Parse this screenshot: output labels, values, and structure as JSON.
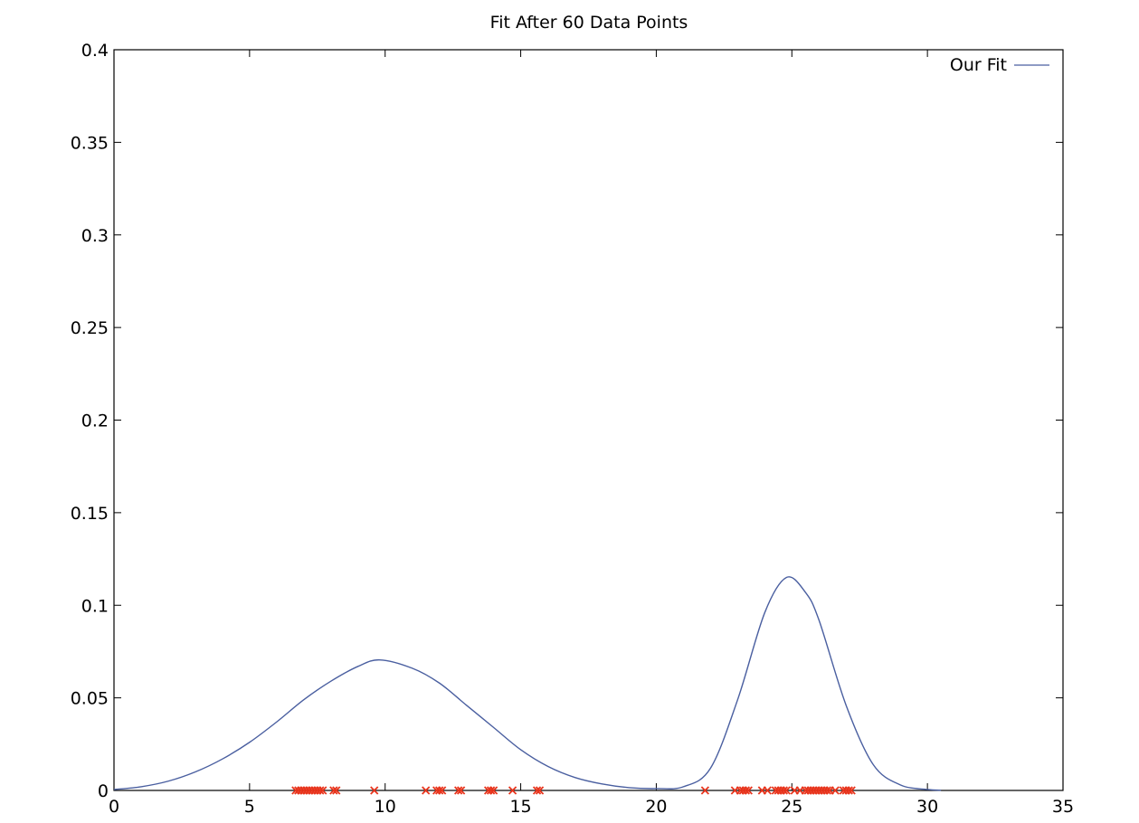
{
  "chart_data": {
    "type": "line",
    "title": "Fit After 60 Data Points",
    "xlabel": "",
    "ylabel": "",
    "xlim": [
      0,
      35
    ],
    "ylim": [
      0,
      0.4
    ],
    "x_ticks": [
      0,
      5,
      10,
      15,
      20,
      25,
      30,
      35
    ],
    "x_tick_labels": [
      "0",
      "5",
      "10",
      "15",
      "20",
      "25",
      "30",
      "35"
    ],
    "y_ticks": [
      0,
      0.05,
      0.1,
      0.15,
      0.2,
      0.25,
      0.3,
      0.35,
      0.4
    ],
    "y_tick_labels": [
      "0",
      "0.05",
      "0.1",
      "0.15",
      "0.2",
      "0.25",
      "0.3",
      "0.35",
      "0.4"
    ],
    "grid": false,
    "legend": {
      "position": "top-right",
      "entries": [
        {
          "label": "Our Fit",
          "color": "#4a5fa0",
          "style": "line"
        }
      ]
    },
    "series": [
      {
        "name": "Our Fit",
        "type": "line",
        "color": "#4a5fa0",
        "x": [
          0,
          1,
          2,
          3,
          4,
          5,
          6,
          7,
          8,
          9,
          9.8,
          11,
          12,
          13,
          14,
          15,
          16,
          17,
          18,
          19,
          20,
          21,
          22,
          23,
          24,
          24.8,
          25.5,
          26,
          27,
          28,
          29,
          30,
          30.5
        ],
        "y": [
          0.0005,
          0.002,
          0.005,
          0.01,
          0.017,
          0.026,
          0.037,
          0.049,
          0.059,
          0.067,
          0.0705,
          0.066,
          0.058,
          0.046,
          0.034,
          0.022,
          0.013,
          0.007,
          0.0035,
          0.0015,
          0.001,
          0.002,
          0.012,
          0.049,
          0.096,
          0.115,
          0.107,
          0.092,
          0.046,
          0.014,
          0.003,
          0.0005,
          0.0001
        ]
      },
      {
        "name": "",
        "type": "scatter",
        "marker": "x",
        "color": "#e8341c",
        "x": [
          6.7,
          6.8,
          6.9,
          7.0,
          7.1,
          7.2,
          7.3,
          7.4,
          7.5,
          7.6,
          7.7,
          8.1,
          8.2,
          9.6,
          11.5,
          11.9,
          12.0,
          12.1,
          12.7,
          12.8,
          13.8,
          13.9,
          14.0,
          14.7,
          15.6,
          15.7,
          21.8,
          22.9,
          23.1,
          23.2,
          23.3,
          23.4,
          23.9,
          24.1,
          24.4,
          24.5,
          24.6,
          24.7,
          24.8,
          25.1,
          25.3,
          25.5,
          25.6,
          25.7,
          25.8,
          25.9,
          26.0,
          26.1,
          26.2,
          26.3,
          26.4,
          26.6,
          26.9,
          27.0,
          27.1,
          27.2
        ],
        "y": [
          0,
          0,
          0,
          0,
          0,
          0,
          0,
          0,
          0,
          0,
          0,
          0,
          0,
          0,
          0,
          0,
          0,
          0,
          0,
          0,
          0,
          0,
          0,
          0,
          0,
          0,
          0,
          0,
          0,
          0,
          0,
          0,
          0,
          0,
          0,
          0,
          0,
          0,
          0,
          0,
          0,
          0,
          0,
          0,
          0,
          0,
          0,
          0,
          0,
          0,
          0,
          0,
          0,
          0,
          0,
          0
        ]
      }
    ]
  }
}
